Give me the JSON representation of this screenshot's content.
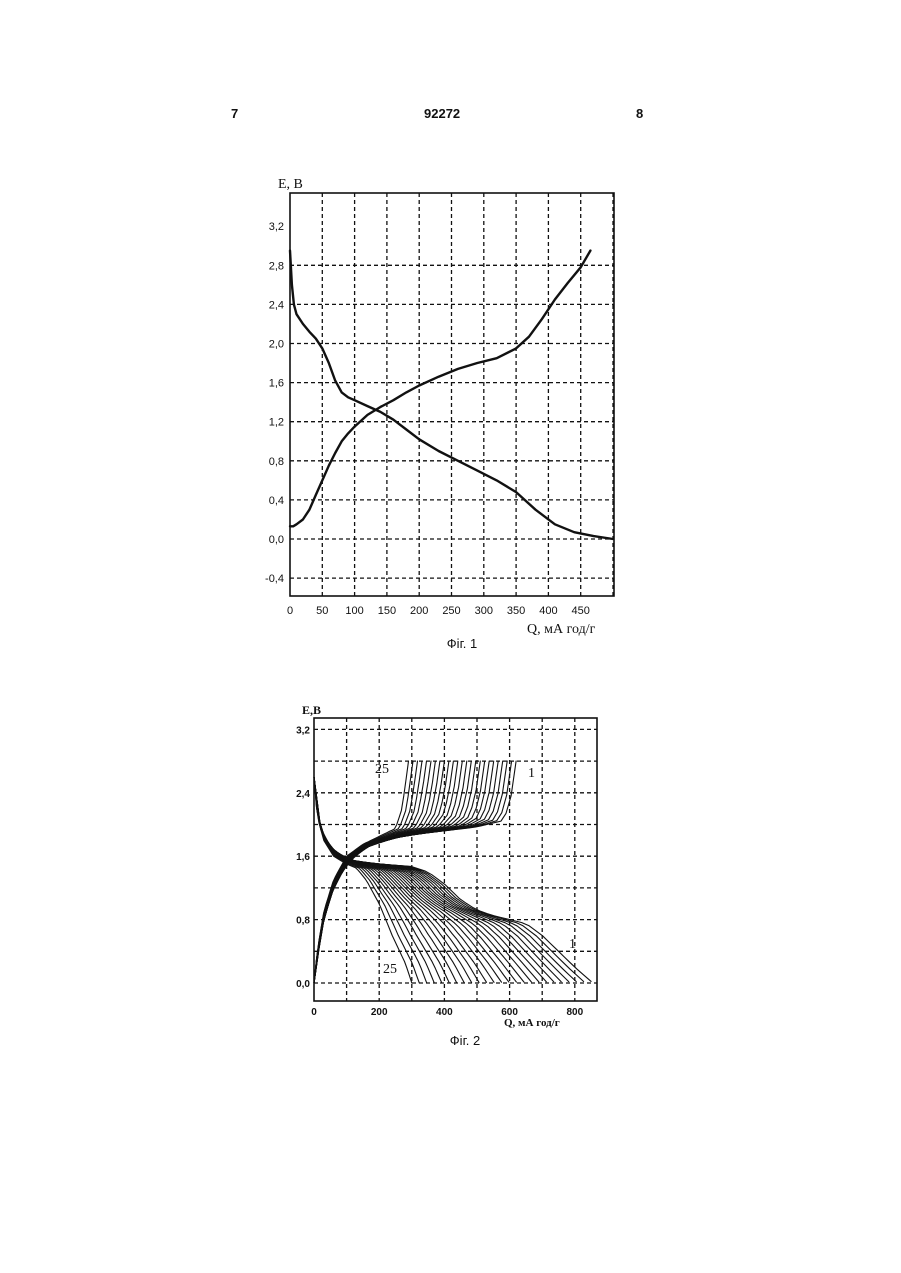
{
  "header": {
    "left": "7",
    "center": "92272",
    "right": "8"
  },
  "figures": [
    {
      "caption": "Фіг. 1",
      "ylabel": "E, B",
      "xlabel": "Q, мА год/г",
      "y_ticks": [
        "3,2",
        "2,8",
        "2,4",
        "2,0",
        "1,6",
        "1,2",
        "0,8",
        "0,4",
        "0,0",
        "-0,4"
      ],
      "x_ticks": [
        "0",
        "50",
        "100",
        "150",
        "200",
        "250",
        "300",
        "350",
        "400",
        "450"
      ]
    },
    {
      "caption": "Фіг. 2",
      "ylabel": "E,B",
      "xlabel": "Q, мА год/г",
      "y_ticks": [
        "3,2",
        "2,4",
        "1,6",
        "0,8",
        "0,0"
      ],
      "x_ticks": [
        "0",
        "200",
        "400",
        "600",
        "800"
      ],
      "annotations": {
        "cycle_first_top": "1",
        "cycle_last_top": "25",
        "cycle_first_bottom": "1",
        "cycle_last_bottom": "25"
      }
    }
  ],
  "chart_data": [
    {
      "type": "line",
      "title": "",
      "xlabel": "Q, мА год/г",
      "ylabel": "E, B",
      "xlim": [
        0,
        500
      ],
      "ylim": [
        -0.6,
        3.5
      ],
      "grid": true,
      "series": [
        {
          "x": [
            0,
            5,
            10,
            20,
            30,
            40,
            50,
            60,
            70,
            80,
            90,
            100,
            120,
            140,
            160,
            180,
            200,
            230,
            260,
            290,
            320,
            350,
            370,
            390,
            410,
            430,
            450,
            465
          ],
          "y": [
            0.13,
            0.13,
            0.15,
            0.2,
            0.3,
            0.45,
            0.6,
            0.75,
            0.88,
            1.0,
            1.08,
            1.15,
            1.27,
            1.35,
            1.42,
            1.5,
            1.57,
            1.66,
            1.74,
            1.8,
            1.85,
            1.95,
            2.07,
            2.25,
            2.45,
            2.62,
            2.78,
            2.95
          ]
        },
        {
          "x": [
            0,
            3,
            6,
            10,
            20,
            30,
            40,
            50,
            60,
            70,
            80,
            90,
            100,
            120,
            140,
            160,
            180,
            200,
            230,
            260,
            290,
            320,
            350,
            380,
            410,
            440,
            470,
            500
          ],
          "y": [
            2.95,
            2.6,
            2.4,
            2.3,
            2.2,
            2.12,
            2.05,
            1.95,
            1.8,
            1.62,
            1.5,
            1.45,
            1.42,
            1.36,
            1.3,
            1.22,
            1.12,
            1.02,
            0.9,
            0.8,
            0.7,
            0.6,
            0.48,
            0.3,
            0.15,
            0.07,
            0.03,
            0.0
          ]
        }
      ]
    },
    {
      "type": "line",
      "title": "",
      "xlabel": "Q, мА год/г",
      "ylabel": "E,B",
      "xlim": [
        0,
        860
      ],
      "ylim": [
        -0.1,
        3.5
      ],
      "grid": true,
      "series_count": 25,
      "first_cycle": {
        "charge": {
          "x": [
            0,
            10,
            30,
            60,
            100,
            150,
            200,
            300,
            400,
            500,
            580,
            600,
            610,
            620
          ],
          "y": [
            0.0,
            0.3,
            0.8,
            1.2,
            1.5,
            1.7,
            1.8,
            1.88,
            1.92,
            1.97,
            2.05,
            2.25,
            2.5,
            2.8
          ]
        },
        "discharge": {
          "x": [
            0,
            10,
            30,
            60,
            100,
            150,
            200,
            300,
            350,
            400,
            450,
            500,
            550,
            600,
            650,
            700,
            750,
            800,
            850
          ],
          "y": [
            2.6,
            2.1,
            1.8,
            1.65,
            1.55,
            1.5,
            1.5,
            1.47,
            1.4,
            1.25,
            1.05,
            0.92,
            0.85,
            0.8,
            0.75,
            0.6,
            0.4,
            0.2,
            0.02
          ]
        }
      },
      "last_cycle": {
        "charge": {
          "x": [
            0,
            10,
            30,
            60,
            100,
            150,
            200,
            250,
            270,
            280,
            290
          ],
          "y": [
            0.0,
            0.4,
            0.9,
            1.3,
            1.6,
            1.75,
            1.85,
            1.95,
            2.2,
            2.5,
            2.8
          ]
        },
        "discharge": {
          "x": [
            0,
            10,
            30,
            60,
            100,
            130,
            160,
            200,
            240,
            280,
            300
          ],
          "y": [
            2.6,
            2.1,
            1.8,
            1.6,
            1.5,
            1.45,
            1.3,
            1.0,
            0.6,
            0.25,
            0.0
          ]
        }
      }
    }
  ]
}
